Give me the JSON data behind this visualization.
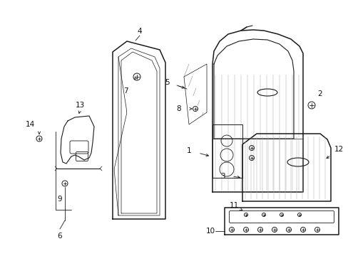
{
  "bg_color": "#ffffff",
  "lc": "#1a1a1a",
  "lc2": "#555555",
  "fig_width": 4.89,
  "fig_height": 3.6,
  "dpi": 100,
  "label_fs": 7.5,
  "label_color": "#111111",
  "lw": 0.8,
  "lw_thin": 0.5,
  "lw_thick": 1.1
}
